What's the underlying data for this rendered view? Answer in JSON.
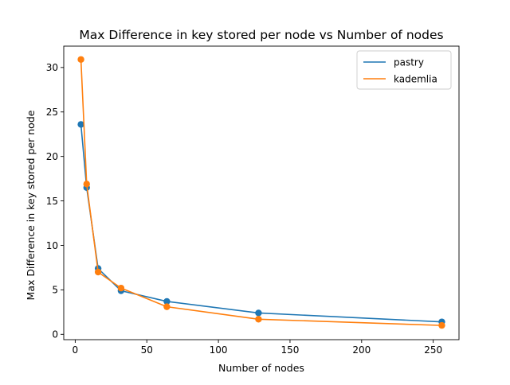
{
  "colors": {
    "pastry": "#1f77b4",
    "kademlia": "#ff7f0e",
    "axis": "#000000",
    "background": "#ffffff"
  },
  "chart_data": {
    "type": "line",
    "title": "Max Difference in key stored per node vs Number of nodes",
    "xlabel": "Number of nodes",
    "ylabel": "Max Difference in key stored per node",
    "xlim": [
      -8,
      268
    ],
    "ylim": [
      -0.6,
      32.4
    ],
    "xticks": [
      0,
      50,
      100,
      150,
      200,
      250
    ],
    "yticks": [
      0,
      5,
      10,
      15,
      20,
      25,
      30
    ],
    "grid": false,
    "legend_position": "top-right",
    "markers": true,
    "x": [
      4,
      8,
      16,
      32,
      64,
      128,
      256
    ],
    "series": [
      {
        "name": "pastry",
        "color": "#1f77b4",
        "values": [
          23.6,
          16.5,
          7.4,
          4.9,
          3.7,
          2.4,
          1.4
        ]
      },
      {
        "name": "kademlia",
        "color": "#ff7f0e",
        "values": [
          30.9,
          16.9,
          7.0,
          5.2,
          3.1,
          1.7,
          1.0
        ]
      }
    ]
  }
}
